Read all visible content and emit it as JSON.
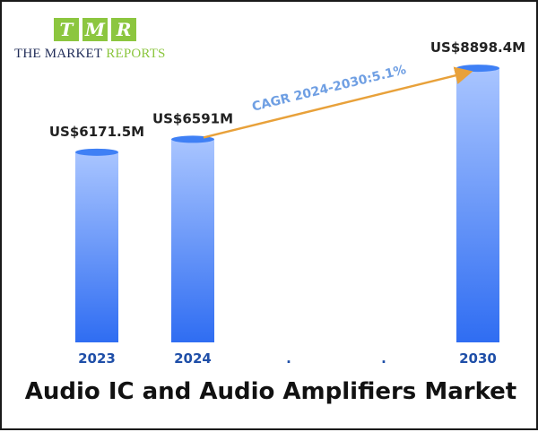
{
  "logo": {
    "letters": [
      "T",
      "M",
      "R"
    ],
    "line1": "THE MARKET",
    "line2": "REPORTS"
  },
  "title": "Audio IC and Audio Amplifiers Market",
  "chart_data": {
    "type": "bar",
    "categories": [
      "2023",
      "2024",
      ".",
      ".",
      "2030"
    ],
    "values": [
      6171.5,
      6591,
      null,
      null,
      8898.4
    ],
    "data_labels": [
      "US$6171.5M",
      "US$6591M",
      "",
      "",
      "US$8898.4M"
    ],
    "annotation": "CAGR 2024-2030:5.1%",
    "title": "Audio IC and Audio Amplifiers Market",
    "xlabel": "",
    "ylabel": "",
    "grid": false,
    "colors": {
      "bar_top": "#a9c5ff",
      "bar_bottom": "#2f6df2",
      "cap": "#3f80f5",
      "arrow": "#e8a13a",
      "category_text": "#1f4fa8",
      "annotation_text": "#6f9fe3"
    }
  }
}
